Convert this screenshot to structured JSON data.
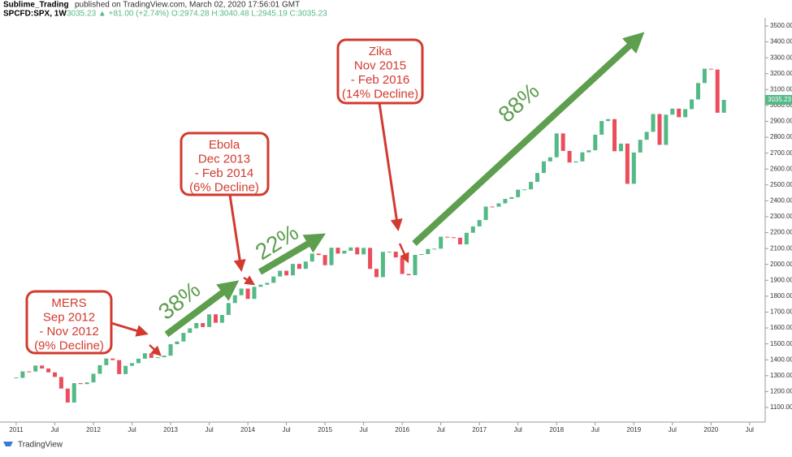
{
  "header": {
    "author": "Sublime_Trading",
    "published": "published on TradingView.com, March 02, 2020 17:56:01 GMT",
    "symbol": "SPCFD:SPX, 1W",
    "quote": "3035.23 ▲ +81.00 (+2.74%) O:2974.28 H:3040.48 L:2945.19 C:3035.23"
  },
  "footer": {
    "brand": "TradingView"
  },
  "chart_data": {
    "type": "candlestick",
    "categories": [
      "2011",
      null,
      null,
      null,
      null,
      null,
      "Jul",
      null,
      null,
      null,
      null,
      null,
      "2012",
      null,
      null,
      null,
      null,
      null,
      "Jul",
      null,
      null,
      null,
      null,
      null,
      "2013",
      null,
      null,
      null,
      null,
      null,
      "Jul",
      null,
      null,
      null,
      null,
      null,
      "2014",
      null,
      null,
      null,
      null,
      null,
      "Jul",
      null,
      null,
      null,
      null,
      null,
      "2015",
      null,
      null,
      null,
      null,
      null,
      "Jul",
      null,
      null,
      null,
      null,
      null,
      "2016",
      null,
      null,
      null,
      null,
      null,
      "Jul",
      null,
      null,
      null,
      null,
      null,
      "2017",
      null,
      null,
      null,
      null,
      null,
      "Jul",
      null,
      null,
      null,
      null,
      null,
      "2018",
      null,
      null,
      null,
      null,
      null,
      "Jul",
      null,
      null,
      null,
      null,
      null,
      "2019",
      null,
      null,
      null,
      null,
      null,
      "Jul",
      null,
      null,
      null,
      null,
      null,
      "2020",
      null,
      null,
      null,
      null,
      null,
      "Jul"
    ],
    "values": [
      1286,
      1327,
      1326,
      1364,
      1345,
      1321,
      1292,
      1219,
      1131,
      1253,
      1247,
      1258,
      1312,
      1366,
      1408,
      1398,
      1310,
      1362,
      1379,
      1407,
      1441,
      1412,
      1416,
      1426,
      1498,
      1515,
      1569,
      1598,
      1631,
      1606,
      1686,
      1633,
      1682,
      1757,
      1806,
      1848,
      1783,
      1859,
      1872,
      1884,
      1924,
      1960,
      1931,
      2003,
      1972,
      2018,
      2068,
      2059,
      1995,
      2105,
      2068,
      2086,
      2107,
      2063,
      2104,
      1972,
      1920,
      2079,
      2080,
      2044,
      1940,
      1932,
      2060,
      2065,
      2097,
      2099,
      2174,
      2171,
      2168,
      2126,
      2199,
      2239,
      2279,
      2364,
      2363,
      2384,
      2412,
      2423,
      2470,
      2472,
      2519,
      2575,
      2648,
      2674,
      2824,
      2714,
      2641,
      2648,
      2705,
      2718,
      2816,
      2902,
      2914,
      2712,
      2760,
      2507,
      2704,
      2784,
      2834,
      2946,
      2752,
      2942,
      2980,
      2926,
      2977,
      3038,
      3141,
      3231,
      3226,
      2954,
      3035,
      null,
      null,
      null,
      null
    ],
    "up_color": "#53b987",
    "down_color": "#eb4d5c",
    "ylim": [
      1008,
      3551
    ],
    "yticks": [
      {
        "value": 1100,
        "label": "1100.00"
      },
      {
        "value": 1200,
        "label": "1200.00"
      },
      {
        "value": 1300,
        "label": "1300.00"
      },
      {
        "value": 1400,
        "label": "1400.00"
      },
      {
        "value": 1500,
        "label": "1500.00"
      },
      {
        "value": 1600,
        "label": "1600.00"
      },
      {
        "value": 1700,
        "label": "1700.00"
      },
      {
        "value": 1800,
        "label": "1800.00"
      },
      {
        "value": 1900,
        "label": "1900.00"
      },
      {
        "value": 2000,
        "label": "2000.00"
      },
      {
        "value": 2100,
        "label": "2100.00"
      },
      {
        "value": 2200,
        "label": "2200.00"
      },
      {
        "value": 2300,
        "label": "2300.00"
      },
      {
        "value": 2400,
        "label": "2400.00"
      },
      {
        "value": 2500,
        "label": "2500.00"
      },
      {
        "value": 2600,
        "label": "2600.00"
      },
      {
        "value": 2700,
        "label": "2700.00"
      },
      {
        "value": 2800,
        "label": "2800.00"
      },
      {
        "value": 2900,
        "label": "2900.00"
      },
      {
        "value": 3000,
        "label": "3000.00"
      },
      {
        "value": 3100,
        "label": "3100.00"
      },
      {
        "value": 3200,
        "label": "3200.00"
      },
      {
        "value": 3300,
        "label": "3300.00"
      },
      {
        "value": 3400,
        "label": "3400.00"
      },
      {
        "value": 3500,
        "label": "3500.00"
      }
    ],
    "last_price": 3035.23,
    "last_price_color": "#53b987",
    "annotations": {
      "mers": [
        "MERS",
        "Sep 2012",
        "- Nov 2012",
        "(9% Decline)"
      ],
      "ebola": [
        "Ebola",
        "Dec 2013",
        "- Feb 2014",
        "(6% Decline)"
      ],
      "zika": [
        "Zika",
        "Nov 2015",
        "- Feb 2016",
        "(14% Decline)"
      ],
      "gains": [
        "38%",
        "22%",
        "88%"
      ]
    }
  }
}
